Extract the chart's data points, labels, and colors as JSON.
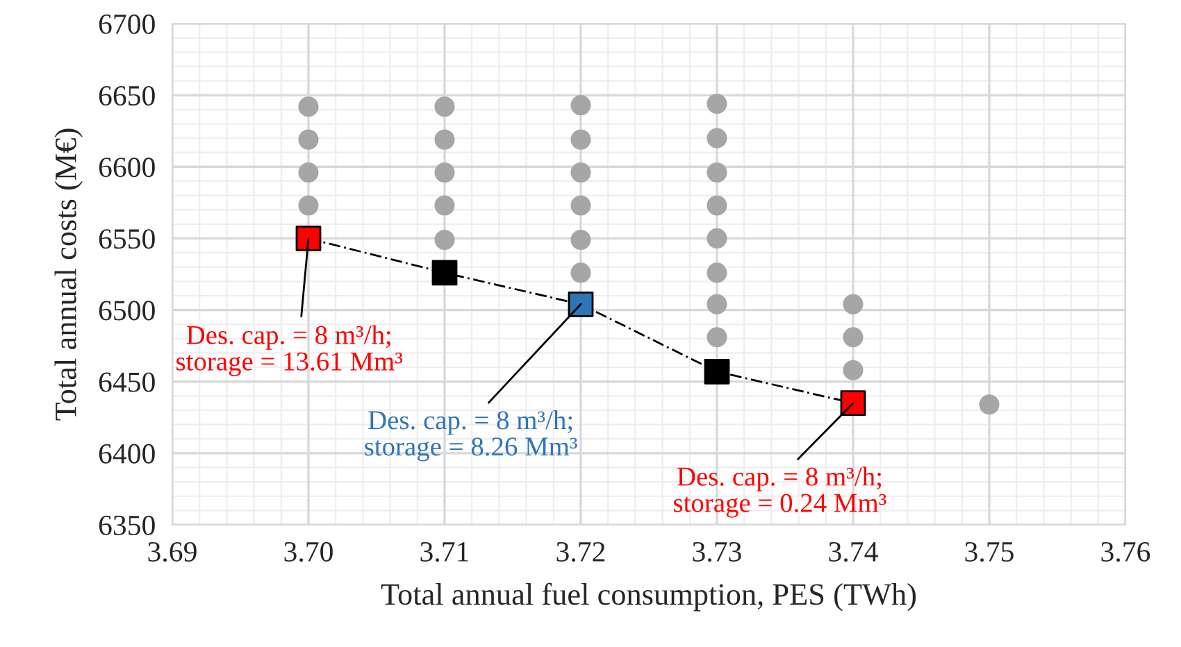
{
  "chart_data": {
    "type": "scatter",
    "xlabel": "Total annual fuel consumption, PES (TWh)",
    "ylabel": "Total annual costs (M€)",
    "xlim": [
      3.69,
      3.76
    ],
    "ylim": [
      6350,
      6700
    ],
    "xticks": [
      {
        "value": 3.69,
        "label": "3.69"
      },
      {
        "value": 3.7,
        "label": "3.70"
      },
      {
        "value": 3.71,
        "label": "3.71"
      },
      {
        "value": 3.72,
        "label": "3.72"
      },
      {
        "value": 3.73,
        "label": "3.73"
      },
      {
        "value": 3.74,
        "label": "3.74"
      },
      {
        "value": 3.75,
        "label": "3.75"
      },
      {
        "value": 3.76,
        "label": "3.76"
      }
    ],
    "yticks": [
      6350,
      6400,
      6450,
      6500,
      6550,
      6600,
      6650,
      6700
    ],
    "grid": true,
    "legend": false,
    "series": [
      {
        "marker": "circle",
        "color": "#a6a6a6",
        "x": [
          3.7,
          3.7,
          3.7,
          3.7,
          3.71,
          3.71,
          3.71,
          3.71,
          3.71,
          3.72,
          3.72,
          3.72,
          3.72,
          3.72,
          3.72,
          3.73,
          3.73,
          3.73,
          3.73,
          3.73,
          3.73,
          3.73,
          3.73,
          3.74,
          3.74,
          3.74,
          3.75
        ],
        "values": [
          6642,
          6619,
          6596,
          6573,
          6642,
          6619,
          6596,
          6573,
          6549,
          6643,
          6619,
          6596,
          6573,
          6549,
          6526,
          6644,
          6620,
          6596,
          6573,
          6550,
          6526,
          6504,
          6481,
          6504,
          6481,
          6458,
          6434
        ]
      },
      {
        "type": "line",
        "line_style": "dashed",
        "marker": "none",
        "color": "#000000",
        "x": [
          3.7,
          3.71,
          3.72,
          3.73,
          3.74
        ],
        "values": [
          6550,
          6526,
          6504,
          6457,
          6435
        ]
      },
      {
        "marker": "square",
        "color": "#ff0000",
        "x": [
          3.7,
          3.74
        ],
        "values": [
          6550,
          6435
        ]
      },
      {
        "marker": "square",
        "color": "#000000",
        "x": [
          3.71,
          3.73
        ],
        "values": [
          6526,
          6457
        ]
      },
      {
        "marker": "square",
        "color": "#2e75b6",
        "x": [
          3.72
        ],
        "values": [
          6504
        ]
      }
    ],
    "annotations": [
      {
        "text": "Des. cap. = 8 m³/h;\nstorage = 13.61 Mm³",
        "x": 3.7,
        "y": 6550
      },
      {
        "text": "Des. cap. = 8 m³/h;\nstorage = 8.26 Mm³",
        "x": 3.72,
        "y": 6504
      },
      {
        "text": "Des. cap. = 8 m³/h;\nstorage = 0.24 Mm³",
        "x": 3.74,
        "y": 6435
      }
    ]
  }
}
